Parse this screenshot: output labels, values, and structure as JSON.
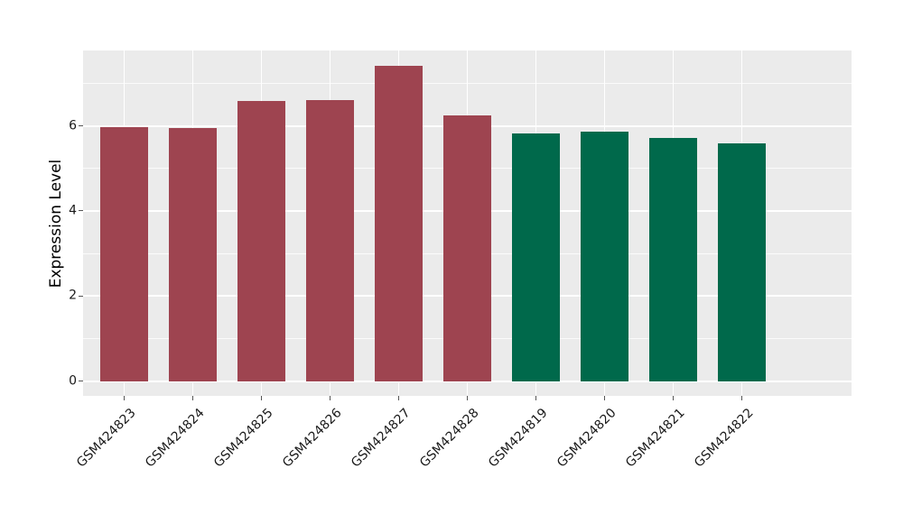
{
  "figure": {
    "background": "#FFFFFF",
    "panel_background": "#EBEBEB",
    "grid_major_color": "#FFFFFF",
    "grid_minor_color": "#FFFFFF",
    "tick_mark_color": "#555555",
    "tick_label_color": "#1A1A1A",
    "axis_title_color": "#000000"
  },
  "chart_data": {
    "type": "bar",
    "title": "",
    "xlabel": "",
    "ylabel": "Expression Level",
    "categories": [
      "GSM424823",
      "GSM424824",
      "GSM424825",
      "GSM424826",
      "GSM424827",
      "GSM424828",
      "GSM424819",
      "GSM424820",
      "GSM424821",
      "GSM424822"
    ],
    "values": [
      5.97,
      5.95,
      6.58,
      6.6,
      7.4,
      6.24,
      5.83,
      5.86,
      5.71,
      5.59
    ],
    "bar_colors": [
      "#9E4450",
      "#9E4450",
      "#9E4450",
      "#9E4450",
      "#9E4450",
      "#9E4450",
      "#00694B",
      "#00694B",
      "#00694B",
      "#00694B"
    ],
    "color_groups": [
      {
        "color": "#9E4450",
        "categories": [
          "GSM424823",
          "GSM424824",
          "GSM424825",
          "GSM424826",
          "GSM424827",
          "GSM424828"
        ]
      },
      {
        "color": "#00694B",
        "categories": [
          "GSM424819",
          "GSM424820",
          "GSM424821",
          "GSM424822"
        ]
      }
    ],
    "yticks": [
      0,
      2,
      4,
      6
    ],
    "yticks_minor": [
      1,
      3,
      5,
      7
    ],
    "ylim": [
      -0.345,
      7.77
    ],
    "bar_width_fraction": 0.7,
    "x_expand": 0.6,
    "x_tick_rotation": -45,
    "grid": "on",
    "legend": "none"
  }
}
